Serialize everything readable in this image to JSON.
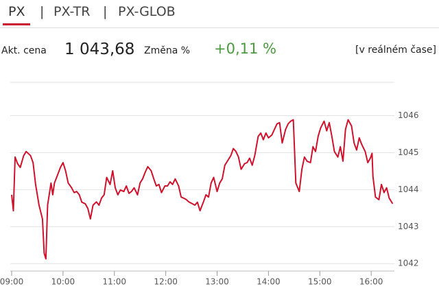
{
  "header": {
    "tabs": [
      "PX",
      "PX-TR",
      "PX-GLOB"
    ]
  },
  "quote": {
    "price_label": "Akt. cena",
    "price": "1 043,68",
    "change_label": "Změna %",
    "change": "+0,11 %",
    "realtime_note": "[v reálném čase]"
  },
  "chart_data": {
    "type": "line",
    "color": "#d0112b",
    "x": [
      "09:00",
      "09:02",
      "09:04",
      "09:07",
      "09:10",
      "09:14",
      "09:17",
      "09:22",
      "09:25",
      "09:28",
      "09:32",
      "09:36",
      "09:38",
      "09:40",
      "09:42",
      "09:46",
      "09:48",
      "09:50",
      "09:54",
      "09:57",
      "10:00",
      "10:03",
      "10:06",
      "10:10",
      "10:13",
      "10:16",
      "10:19",
      "10:22",
      "10:26",
      "10:29",
      "10:32",
      "10:35",
      "10:39",
      "10:42",
      "10:45",
      "10:48",
      "10:51",
      "10:55",
      "10:58",
      "11:01",
      "11:04",
      "11:07",
      "11:11",
      "11:14",
      "11:17",
      "11:20",
      "11:23",
      "11:27",
      "11:30",
      "11:33",
      "11:36",
      "11:39",
      "11:43",
      "11:46",
      "11:49",
      "11:52",
      "11:55",
      "11:59",
      "12:02",
      "12:05",
      "12:08",
      "12:11",
      "12:15",
      "12:18",
      "12:21",
      "12:24",
      "12:27",
      "12:31",
      "12:34",
      "12:37",
      "12:40",
      "12:44",
      "12:47",
      "12:50",
      "12:53",
      "12:56",
      "13:00",
      "13:03",
      "13:06",
      "13:09",
      "13:12",
      "13:16",
      "13:19",
      "13:22",
      "13:25",
      "13:28",
      "13:32",
      "13:35",
      "13:38",
      "13:41",
      "13:44",
      "13:48",
      "13:51",
      "13:54",
      "13:57",
      "14:00",
      "14:04",
      "14:07",
      "14:10",
      "14:13",
      "14:16",
      "14:20",
      "14:23",
      "14:26",
      "14:29",
      "14:32",
      "14:36",
      "14:39",
      "14:42",
      "14:45",
      "14:49",
      "14:52",
      "14:55",
      "14:58",
      "15:01",
      "15:05",
      "15:08",
      "15:11",
      "15:14",
      "15:17",
      "15:21",
      "15:24",
      "15:27",
      "15:30",
      "15:33",
      "15:37",
      "15:40",
      "15:43",
      "15:46",
      "15:49",
      "15:53",
      "15:56",
      "15:59",
      "16:01",
      "16:02",
      "16:05",
      "16:09",
      "16:12",
      "16:15",
      "16:18",
      "16:21",
      "16:25"
    ],
    "values": [
      1043.86,
      1043.43,
      1044.88,
      1044.7,
      1044.6,
      1044.92,
      1045.03,
      1044.92,
      1044.73,
      1044.14,
      1043.58,
      1043.21,
      1042.28,
      1042.13,
      1043.58,
      1044.18,
      1043.86,
      1044.18,
      1044.42,
      1044.6,
      1044.73,
      1044.51,
      1044.18,
      1044.05,
      1043.92,
      1043.95,
      1043.86,
      1043.66,
      1043.62,
      1043.49,
      1043.21,
      1043.58,
      1043.67,
      1043.58,
      1043.77,
      1043.86,
      1044.33,
      1044.14,
      1044.51,
      1044.05,
      1043.86,
      1043.99,
      1043.95,
      1044.1,
      1043.9,
      1043.95,
      1044.05,
      1043.86,
      1044.18,
      1044.29,
      1044.47,
      1044.62,
      1044.51,
      1044.29,
      1044.1,
      1044.14,
      1043.92,
      1044.1,
      1044.1,
      1044.21,
      1044.14,
      1044.29,
      1044.1,
      1043.8,
      1043.77,
      1043.73,
      1043.67,
      1043.62,
      1043.58,
      1043.66,
      1043.43,
      1043.67,
      1043.86,
      1043.8,
      1044.18,
      1044.33,
      1043.95,
      1044.18,
      1044.29,
      1044.66,
      1044.77,
      1044.92,
      1045.11,
      1045.03,
      1044.88,
      1044.55,
      1044.7,
      1044.73,
      1044.85,
      1044.66,
      1044.92,
      1045.44,
      1045.53,
      1045.35,
      1045.53,
      1045.4,
      1045.48,
      1045.63,
      1045.78,
      1045.81,
      1045.26,
      1045.63,
      1045.78,
      1045.85,
      1045.89,
      1044.18,
      1043.95,
      1044.55,
      1044.88,
      1044.77,
      1044.73,
      1045.16,
      1045.03,
      1045.44,
      1045.67,
      1045.85,
      1045.59,
      1045.81,
      1045.44,
      1045.03,
      1044.88,
      1045.16,
      1044.77,
      1045.63,
      1045.89,
      1045.72,
      1045.26,
      1045.07,
      1045.4,
      1045.22,
      1045.03,
      1044.73,
      1044.85,
      1044.98,
      1044.36,
      1043.8,
      1043.73,
      1044.14,
      1043.92,
      1044.05,
      1043.77,
      1043.62
    ],
    "xlim": [
      "09:00",
      "16:30"
    ],
    "xticks": [
      "09:00",
      "10:00",
      "11:00",
      "12:00",
      "13:00",
      "14:00",
      "15:00",
      "16:00"
    ],
    "ylim": [
      1041.8,
      1046.9
    ],
    "yticks": [
      1042,
      1043,
      1044,
      1045,
      1046
    ],
    "grid": true
  }
}
